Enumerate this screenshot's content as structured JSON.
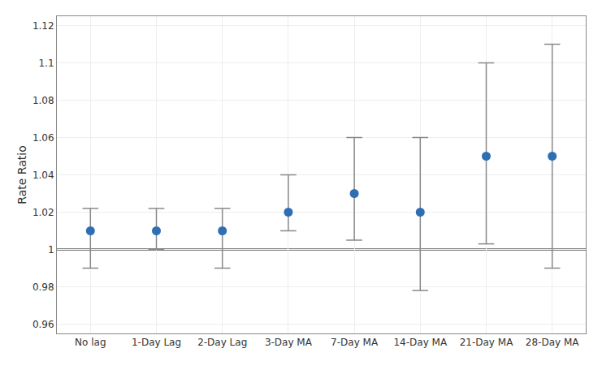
{
  "chart_data": {
    "type": "scatter",
    "categories": [
      "No lag",
      "1-Day Lag",
      "2-Day Lag",
      "3-Day MA",
      "7-Day MA",
      "14-Day MA",
      "21-Day MA",
      "28-Day MA"
    ],
    "values": [
      1.01,
      1.01,
      1.01,
      1.02,
      1.03,
      1.02,
      1.05,
      1.05
    ],
    "ci": {
      "lower": [
        0.99,
        1.0,
        0.99,
        1.01,
        1.005,
        0.978,
        1.003,
        0.99
      ],
      "upper": [
        1.022,
        1.022,
        1.022,
        1.04,
        1.06,
        1.06,
        1.1,
        1.11
      ],
      "color": "#888888"
    },
    "refline": {
      "value": 1.0,
      "color": "#000000"
    },
    "color": "#2E6EB5",
    "marker": "circle",
    "ylabel": "Rate Ratio",
    "ylim": [
      0.955,
      1.125
    ],
    "yticks": [
      0.96,
      0.98,
      1,
      1.02,
      1.04,
      1.06,
      1.08,
      1.1,
      1.12
    ],
    "grid": true
  }
}
